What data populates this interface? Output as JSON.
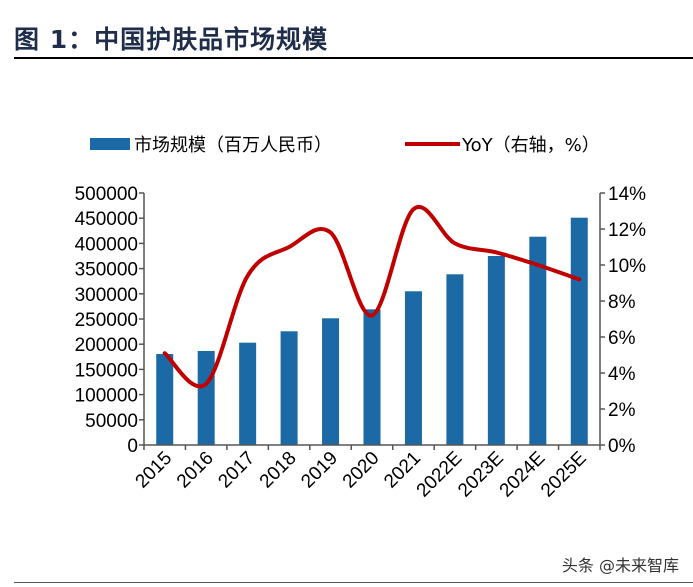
{
  "header": {
    "title": "图 1：中国护肤品市场规模"
  },
  "watermark": "头条 @未来智库",
  "chart_data": {
    "type": "bar+line",
    "title": "中国护肤品市场规模",
    "categories": [
      "2015",
      "2016",
      "2017",
      "2018",
      "2019",
      "2020",
      "2021",
      "2022E",
      "2023E",
      "2024E",
      "2025E"
    ],
    "series": [
      {
        "name": "市场规模（百万人民币）",
        "type": "bar",
        "axis": "left",
        "color": "#1b6aa5",
        "values": [
          180500,
          186500,
          203000,
          225600,
          251400,
          269200,
          305000,
          338700,
          375000,
          413300,
          451000
        ]
      },
      {
        "name": "YoY（右轴，%）",
        "type": "line",
        "axis": "right",
        "color": "#c00000",
        "values": [
          5.1,
          3.4,
          9.4,
          11.0,
          11.8,
          7.2,
          13.1,
          11.2,
          10.7,
          10.0,
          9.2
        ]
      }
    ],
    "left_axis": {
      "ylim": [
        0,
        500000
      ],
      "ticks": [
        "0",
        "50000",
        "100000",
        "150000",
        "200000",
        "250000",
        "300000",
        "350000",
        "400000",
        "450000",
        "500000"
      ]
    },
    "right_axis": {
      "ylim": [
        0,
        14
      ],
      "ticks": [
        "0%",
        "2%",
        "4%",
        "6%",
        "8%",
        "10%",
        "12%",
        "14%"
      ]
    },
    "legend_position": "top",
    "grid": false
  }
}
